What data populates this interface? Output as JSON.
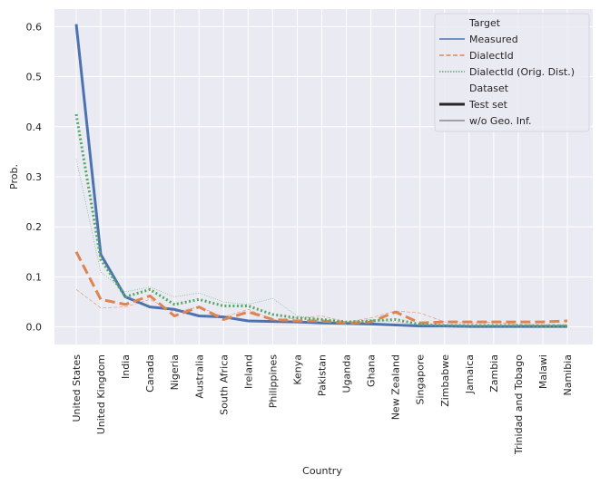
{
  "chart_data": {
    "type": "line",
    "title": "",
    "xlabel": "Country",
    "ylabel": "Prob.",
    "ylim": [
      -0.035,
      0.635
    ],
    "yticks": [
      0.0,
      0.1,
      0.2,
      0.3,
      0.4,
      0.5,
      0.6
    ],
    "ytick_labels": [
      "0.0",
      "0.1",
      "0.2",
      "0.3",
      "0.4",
      "0.5",
      "0.6"
    ],
    "grid": true,
    "legend_position": "top-right",
    "categories": [
      "United States",
      "United Kingdom",
      "India",
      "Canada",
      "Nigeria",
      "Australia",
      "South Africa",
      "Ireland",
      "Philippines",
      "Kenya",
      "Pakistan",
      "Uganda",
      "Ghana",
      "New Zealand",
      "Singapore",
      "Zimbabwe",
      "Jamaica",
      "Zambia",
      "Trinidad and Tobago",
      "Malawi",
      "Namibia"
    ],
    "legend": {
      "hue_title": "Target",
      "hue_entries": [
        {
          "name": "Measured",
          "color": "#4c72b0",
          "dash": "solid"
        },
        {
          "name": "DialectId",
          "color": "#dd8452",
          "dash": "dashed"
        },
        {
          "name": "DialectId (Orig. Dist.)",
          "color": "#55a868",
          "dash": "dotted"
        }
      ],
      "style_title": "Dataset",
      "style_entries": [
        {
          "name": "Test set",
          "weight": "thick"
        },
        {
          "name": "w/o Geo. Inf.",
          "weight": "thin"
        }
      ]
    },
    "series": [
      {
        "target": "Measured",
        "dataset": "Test set",
        "color": "#4c72b0",
        "dash": "solid",
        "weight": "thick",
        "values": [
          0.605,
          0.145,
          0.06,
          0.04,
          0.035,
          0.022,
          0.02,
          0.012,
          0.011,
          0.01,
          0.008,
          0.007,
          0.006,
          0.004,
          0.002,
          0.002,
          0.001,
          0.001,
          0.001,
          0.001,
          0.001
        ]
      },
      {
        "target": "Measured",
        "dataset": "w/o Geo. Inf.",
        "color": "#4c72b0",
        "dash": "solid",
        "weight": "thin",
        "values": [
          0.605,
          0.145,
          0.06,
          0.04,
          0.035,
          0.022,
          0.02,
          0.012,
          0.011,
          0.01,
          0.008,
          0.007,
          0.006,
          0.004,
          0.002,
          0.002,
          0.001,
          0.001,
          0.001,
          0.001,
          0.001
        ]
      },
      {
        "target": "DialectId",
        "dataset": "Test set",
        "color": "#dd8452",
        "dash": "dashed",
        "weight": "thick",
        "values": [
          0.15,
          0.055,
          0.045,
          0.062,
          0.022,
          0.04,
          0.015,
          0.03,
          0.015,
          0.012,
          0.012,
          0.008,
          0.01,
          0.03,
          0.008,
          0.01,
          0.01,
          0.01,
          0.01,
          0.01,
          0.012
        ]
      },
      {
        "target": "DialectId",
        "dataset": "w/o Geo. Inf.",
        "color": "#dd8452",
        "dash": "dashed",
        "weight": "thin",
        "values": [
          0.075,
          0.038,
          0.04,
          0.055,
          0.03,
          0.04,
          0.02,
          0.035,
          0.015,
          0.018,
          0.022,
          0.01,
          0.018,
          0.032,
          0.028,
          0.01,
          0.008,
          0.01,
          0.005,
          0.005,
          0.005
        ]
      },
      {
        "target": "DialectId (Orig. Dist.)",
        "dataset": "Test set",
        "color": "#55a868",
        "dash": "dotted",
        "weight": "thick",
        "values": [
          0.425,
          0.135,
          0.06,
          0.075,
          0.045,
          0.055,
          0.042,
          0.042,
          0.025,
          0.018,
          0.015,
          0.01,
          0.012,
          0.015,
          0.005,
          0.003,
          0.003,
          0.003,
          0.003,
          0.002,
          0.002
        ]
      },
      {
        "target": "DialectId (Orig. Dist.)",
        "dataset": "w/o Geo. Inf.",
        "color": "#55a868",
        "dash": "dotted",
        "weight": "thin",
        "values": [
          0.335,
          0.11,
          0.07,
          0.08,
          0.06,
          0.068,
          0.05,
          0.045,
          0.057,
          0.022,
          0.015,
          0.008,
          0.015,
          0.01,
          0.005,
          0.003,
          0.002,
          0.002,
          0.002,
          0.002,
          0.002
        ]
      }
    ]
  }
}
